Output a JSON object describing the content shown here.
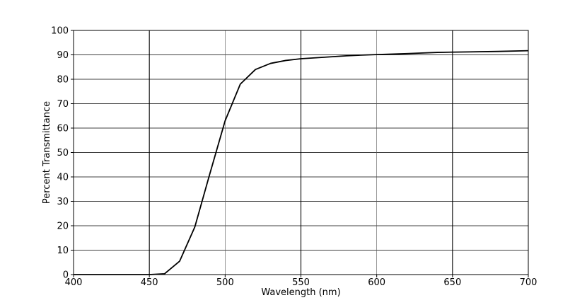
{
  "chart_data": {
    "type": "line",
    "title": "",
    "xlabel": "Wavelength (nm)",
    "ylabel": "Percent Transmittance",
    "xlim": [
      400,
      700
    ],
    "ylim": [
      0,
      100
    ],
    "xticks": [
      400,
      450,
      500,
      550,
      600,
      650,
      700
    ],
    "yticks": [
      0,
      10,
      20,
      30,
      40,
      50,
      60,
      70,
      80,
      90,
      100
    ],
    "x_grid_major": [
      450,
      550,
      650
    ],
    "grid": true,
    "legend": "none",
    "line_color": "#000000",
    "series": [
      {
        "x": [
          400,
          450,
          460,
          470,
          480,
          490,
          500,
          510,
          520,
          530,
          540,
          550,
          560,
          570,
          580,
          590,
          600,
          620,
          640,
          660,
          680,
          700
        ],
        "y": [
          0,
          0,
          0.3,
          5.5,
          19.5,
          41.5,
          63,
          78,
          84,
          86.5,
          87.7,
          88.4,
          88.8,
          89.2,
          89.6,
          89.9,
          90.1,
          90.5,
          91.0,
          91.2,
          91.4,
          91.7
        ]
      }
    ]
  }
}
